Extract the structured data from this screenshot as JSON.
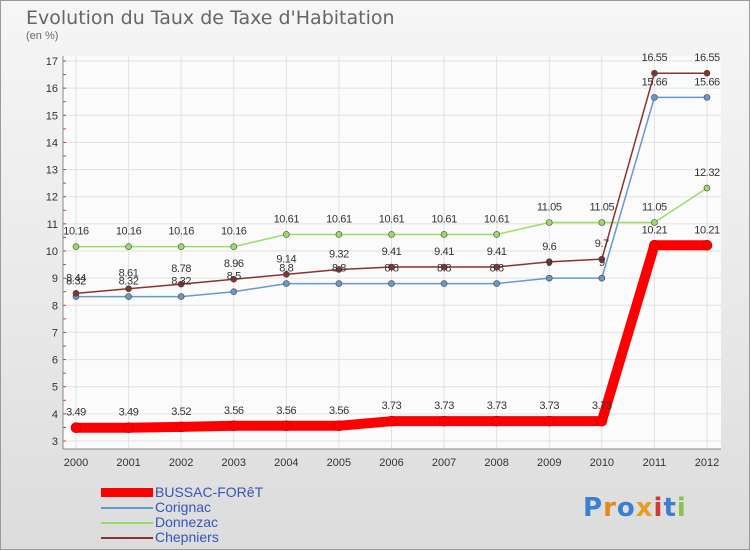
{
  "title": "Evolution du Taux de Taxe d'Habitation",
  "subtitle": "(en %)",
  "logo": "Proxiti",
  "chart_data": {
    "type": "line",
    "x": [
      "2000",
      "2001",
      "2002",
      "2003",
      "2004",
      "2005",
      "2006",
      "2007",
      "2008",
      "2009",
      "2010",
      "2011",
      "2012"
    ],
    "ylim": [
      3,
      17
    ],
    "yticks": [
      3,
      4,
      5,
      6,
      7,
      8,
      9,
      10,
      11,
      12,
      13,
      14,
      15,
      16,
      17
    ],
    "grid": true,
    "legend_position": "bottom-left",
    "series": [
      {
        "name": "BUSSAC-FORêT",
        "color": "#ff0000",
        "values": [
          3.49,
          3.49,
          3.52,
          3.56,
          3.56,
          3.56,
          3.73,
          3.73,
          3.73,
          3.73,
          3.73,
          10.21,
          10.21
        ],
        "labels": [
          "3.49",
          "3.49",
          "3.52",
          "3.56",
          "3.56",
          "3.56",
          "3.73",
          "3.73",
          "3.73",
          "3.73",
          "3.73",
          "10.21",
          "10.21"
        ]
      },
      {
        "name": "Corignac",
        "color": "#6699cc",
        "values": [
          8.32,
          8.32,
          8.32,
          8.5,
          8.8,
          8.8,
          8.8,
          8.8,
          8.8,
          9,
          9,
          15.66,
          15.66
        ],
        "labels": [
          "8.32",
          "8.32",
          "8.32",
          "8.5",
          "8.8",
          "8.8",
          "8.8",
          "8.8",
          "8.8",
          "9",
          "9",
          "15.66",
          "15.66"
        ]
      },
      {
        "name": "Donnezac",
        "color": "#99dd66",
        "values": [
          10.16,
          10.16,
          10.16,
          10.16,
          10.61,
          10.61,
          10.61,
          10.61,
          10.61,
          11.05,
          11.05,
          11.05,
          12.32
        ],
        "labels": [
          "10.16",
          "10.16",
          "10.16",
          "10.16",
          "10.61",
          "10.61",
          "10.61",
          "10.61",
          "10.61",
          "11.05",
          "11.05",
          "11.05",
          "12.32"
        ]
      },
      {
        "name": "Chepniers",
        "color": "#883333",
        "values": [
          8.44,
          8.61,
          8.78,
          8.96,
          9.14,
          9.32,
          9.41,
          9.41,
          9.41,
          9.6,
          9.7,
          16.55,
          16.55
        ],
        "labels": [
          "8.44",
          "8.61",
          "8.78",
          "8.96",
          "9.14",
          "9.32",
          "9.41",
          "9.41",
          "9.41",
          "9.6",
          "9.7",
          "16.55",
          "16.55"
        ]
      }
    ]
  }
}
